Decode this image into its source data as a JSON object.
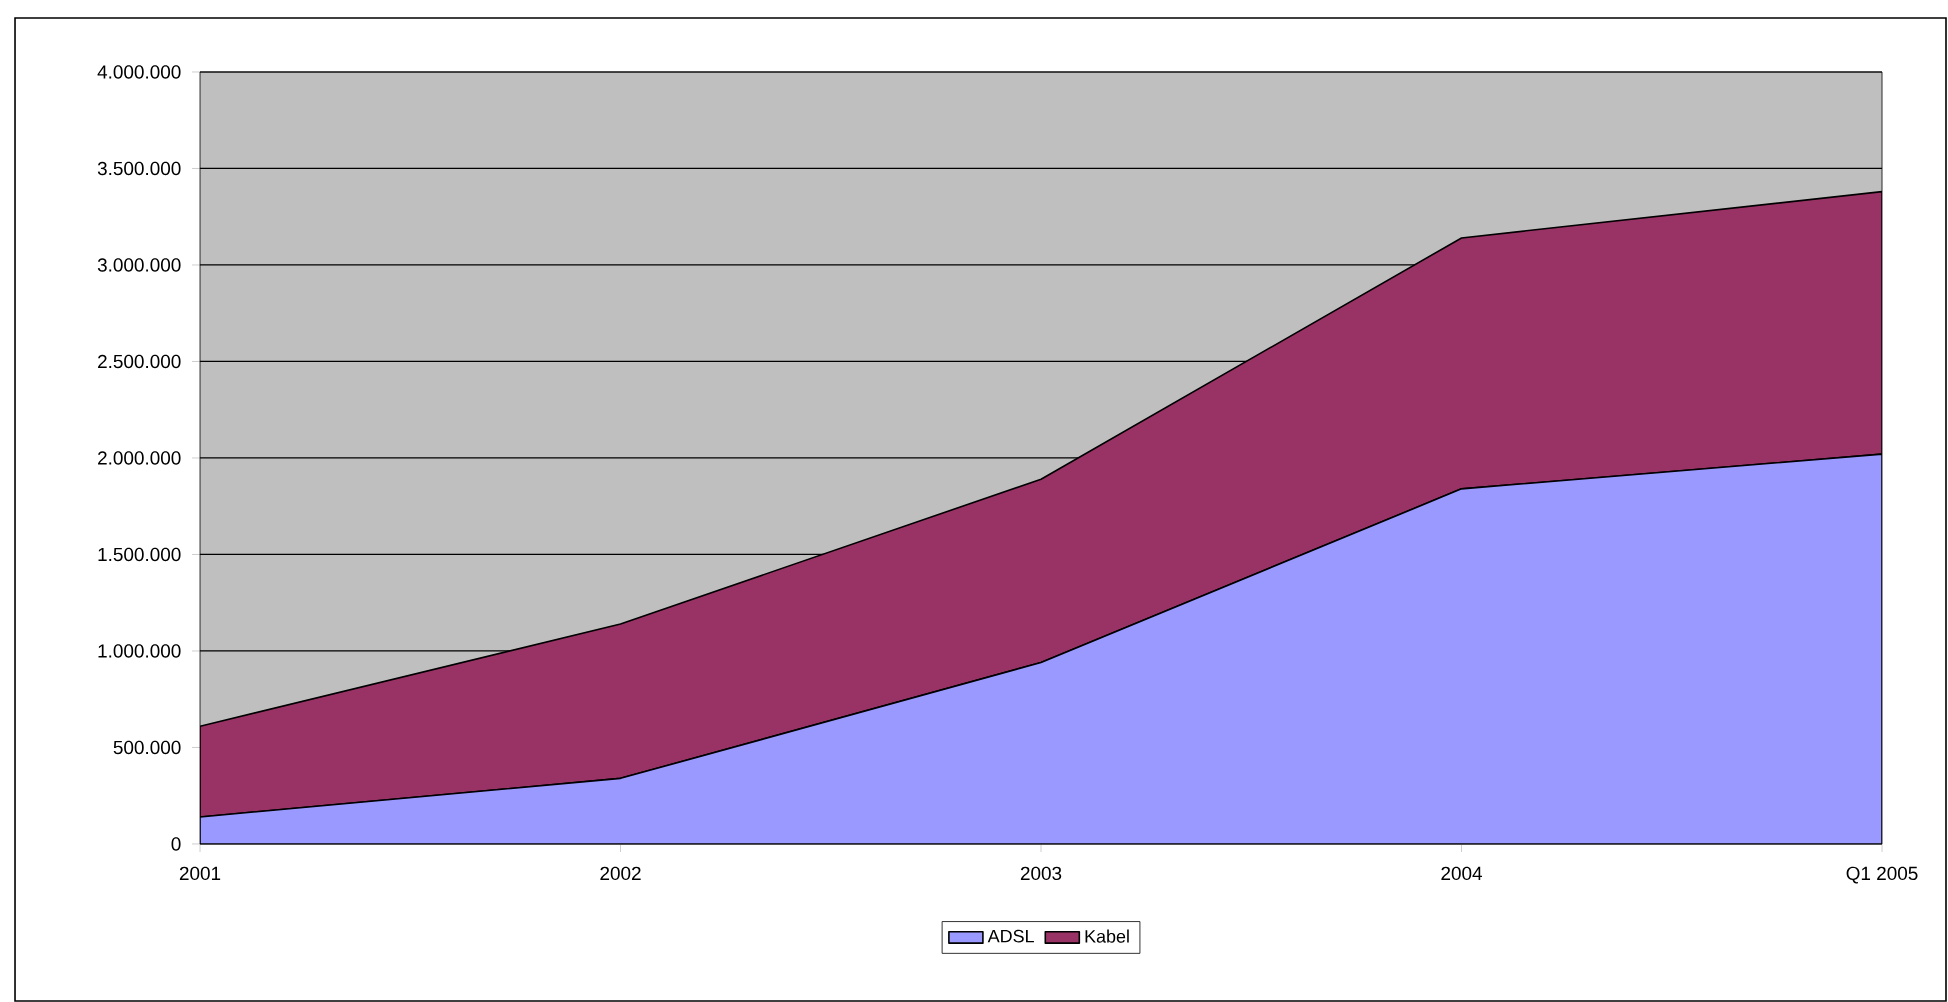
{
  "chart_data": {
    "type": "area",
    "stacked": true,
    "categories": [
      "2001",
      "2002",
      "2003",
      "2004",
      "Q1 2005"
    ],
    "series": [
      {
        "name": "ADSL",
        "color": "#9999ff",
        "values": [
          140000,
          340000,
          940000,
          1840000,
          2020000
        ]
      },
      {
        "name": "Kabel",
        "color": "#993366",
        "values": [
          470000,
          800000,
          950000,
          1300000,
          1360000
        ]
      }
    ],
    "ylim": [
      0,
      4000000
    ],
    "yticks": [
      0,
      {
        "value": 500000,
        "label": "500.000"
      },
      {
        "value": 1000000,
        "label": "1.000.000"
      },
      {
        "value": 1500000,
        "label": "1.500.000"
      },
      {
        "value": 2000000,
        "label": "2.000.000"
      },
      {
        "value": 2500000,
        "label": "2.500.000"
      },
      {
        "value": 3000000,
        "label": "3.000.000"
      },
      {
        "value": 3500000,
        "label": "3.500.000"
      },
      {
        "value": 4000000,
        "label": "4.000.000"
      }
    ],
    "grid": "y",
    "legend": "bottom"
  }
}
